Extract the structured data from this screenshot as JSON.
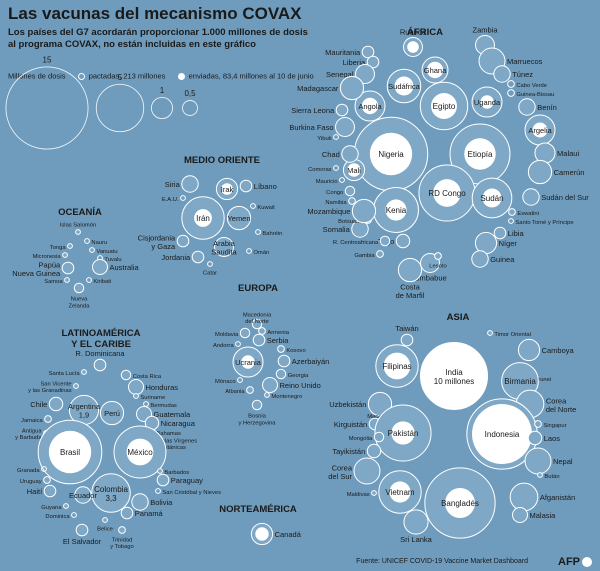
{
  "title": "Las vacunas del mecanismo COVAX",
  "subtitle": "Los países del G7 acordarán proporcionar 1.000 millones de dosis al programa COVAX, no están incluidas en este gráfico",
  "legend": {
    "label": "Millones de dosis",
    "pactadas": "pactadas, 213 millones",
    "enviadas": "enviadas, 83,4 millones al 10 de junio",
    "scale": [
      "15",
      "5",
      "1",
      "0,5"
    ]
  },
  "source": "Fuente: UNICEF COVID-19 Vaccine Market Dashboard",
  "credit": "AFP",
  "chart_data": {
    "type": "bubble",
    "unit": "millones de dosis",
    "regions": [
      {
        "name": "ÁFRICA",
        "countries": [
          {
            "name": "Nigeria",
            "pactadas": 12,
            "enviadas": 4
          },
          {
            "name": "Etiopía",
            "pactadas": 8,
            "enviadas": 2.2
          },
          {
            "name": "RD Congo",
            "pactadas": 7,
            "enviadas": 1.7
          },
          {
            "name": "Kenia",
            "pactadas": 4.5,
            "enviadas": 1
          },
          {
            "name": "Egipto",
            "pactadas": 5,
            "enviadas": 1.5
          },
          {
            "name": "Sudán",
            "pactadas": 3.5,
            "enviadas": 0.8
          },
          {
            "name": "Angola",
            "pactadas": 2,
            "enviadas": 0.6
          },
          {
            "name": "Sudáfrica",
            "pactadas": 2.5,
            "enviadas": 0.8
          },
          {
            "name": "Ghana",
            "pactadas": 1.5,
            "enviadas": 0.6
          },
          {
            "name": "Uganda",
            "pactadas": 2,
            "enviadas": 0.4
          },
          {
            "name": "Argelia",
            "pactadas": 2,
            "enviadas": 0.5
          },
          {
            "name": "Mali",
            "pactadas": 1,
            "enviadas": 0.4
          },
          {
            "name": "Ruanda",
            "pactadas": 0.8,
            "enviadas": 0.3
          },
          {
            "name": "Zambia",
            "pactadas": 0.8
          },
          {
            "name": "Mauritania",
            "pactadas": 0.3
          },
          {
            "name": "Liberia",
            "pactadas": 0.3
          },
          {
            "name": "Senegal",
            "pactadas": 0.8
          },
          {
            "name": "Madagascar",
            "pactadas": 1.2
          },
          {
            "name": "Marruecos",
            "pactadas": 1.5
          },
          {
            "name": "Túnez",
            "pactadas": 0.6
          },
          {
            "name": "Cabo Verde",
            "pactadas": 0.1
          },
          {
            "name": "Guinea-Bissau",
            "pactadas": 0.1
          },
          {
            "name": "Benín",
            "pactadas": 0.6
          },
          {
            "name": "Malaui",
            "pactadas": 0.9
          },
          {
            "name": "Camerún",
            "pactadas": 1.2
          },
          {
            "name": "Sudán del Sur",
            "pactadas": 0.6
          },
          {
            "name": "Eswatini",
            "pactadas": 0.1
          },
          {
            "name": "Santo Tomé y Príncipe",
            "pactadas": 0.05
          },
          {
            "name": "Libia",
            "pactadas": 0.3
          },
          {
            "name": "Níger",
            "pactadas": 1
          },
          {
            "name": "Guinea",
            "pactadas": 0.6
          },
          {
            "name": "Zimbabue",
            "pactadas": 0.8
          },
          {
            "name": "Lesoto",
            "pactadas": 0.1
          },
          {
            "name": "Costa de Marfil",
            "pactadas": 1.2
          },
          {
            "name": "Togo",
            "pactadas": 0.4
          },
          {
            "name": "Gambia",
            "pactadas": 0.1
          },
          {
            "name": "R. Centroafricana",
            "pactadas": 0.2
          },
          {
            "name": "Somalia",
            "pactadas": 0.6
          },
          {
            "name": "Botsuana",
            "pactadas": 0.1
          },
          {
            "name": "Mozambique",
            "pactadas": 1.2
          },
          {
            "name": "Namibia",
            "pactadas": 0.1
          },
          {
            "name": "Congo",
            "pactadas": 0.2
          },
          {
            "name": "Mauricio",
            "pactadas": 0.05
          },
          {
            "name": "Comoras",
            "pactadas": 0.05
          },
          {
            "name": "Chad",
            "pactadas": 0.6
          },
          {
            "name": "Yibuti",
            "pactadas": 0.05
          },
          {
            "name": "Burkina Faso",
            "pactadas": 0.8
          },
          {
            "name": "Sierra Leona",
            "pactadas": 0.3
          }
        ]
      },
      {
        "name": "MEDIO ORIENTE",
        "countries": [
          {
            "name": "Irán",
            "pactadas": 4,
            "enviadas": 0.7
          },
          {
            "name": "Siria",
            "pactadas": 0.6
          },
          {
            "name": "Irak",
            "pactadas": 1,
            "enviadas": 0.3
          },
          {
            "name": "Líbano",
            "pactadas": 0.3
          },
          {
            "name": "E.A.U.",
            "pactadas": 0.05
          },
          {
            "name": "Kuwait",
            "pactadas": 0.05
          },
          {
            "name": "Yemen",
            "pactadas": 1.2
          },
          {
            "name": "Bahréin",
            "pactadas": 0.05
          },
          {
            "name": "Cisjordania y Gaza",
            "pactadas": 0.3
          },
          {
            "name": "Arabia Saudita",
            "pactadas": 0.8
          },
          {
            "name": "Jordania",
            "pactadas": 0.3
          },
          {
            "name": "Catar",
            "pactadas": 0.05
          },
          {
            "name": "Omán",
            "pactadas": 0.05
          }
        ]
      },
      {
        "name": "OCEANÍA",
        "countries": [
          {
            "name": "Islas Salomón",
            "pactadas": 0.05
          },
          {
            "name": "Tonga",
            "pactadas": 0.02
          },
          {
            "name": "Nauru",
            "pactadas": 0.01
          },
          {
            "name": "Micronesia",
            "pactadas": 0.02
          },
          {
            "name": "Vanuatu",
            "pactadas": 0.03
          },
          {
            "name": "Tuvalu",
            "pactadas": 0.01
          },
          {
            "name": "Papúa Nueva Guinea",
            "pactadas": 0.3
          },
          {
            "name": "Australia",
            "pactadas": 0.5
          },
          {
            "name": "Samoa",
            "pactadas": 0.02
          },
          {
            "name": "Kiribati",
            "pactadas": 0.01
          },
          {
            "name": "Nueva Zelanda",
            "pactadas": 0.2
          }
        ]
      },
      {
        "name": "EUROPA",
        "countries": [
          {
            "name": "Macedonia del Norte",
            "pactadas": 0.2
          },
          {
            "name": "Moldavia",
            "pactadas": 0.2
          },
          {
            "name": "Armenia",
            "pactadas": 0.1
          },
          {
            "name": "Andorra",
            "pactadas": 0.01
          },
          {
            "name": "Serbia",
            "pactadas": 0.3
          },
          {
            "name": "Kosovo",
            "pactadas": 0.1
          },
          {
            "name": "Ucrania",
            "pactadas": 2,
            "enviadas": 0.4
          },
          {
            "name": "Azerbaiyán",
            "pactadas": 0.3
          },
          {
            "name": "Georgia",
            "pactadas": 0.2
          },
          {
            "name": "Mónaco",
            "pactadas": 0.01
          },
          {
            "name": "Reino Unido",
            "pactadas": 0.5
          },
          {
            "name": "Albania",
            "pactadas": 0.1
          },
          {
            "name": "Montenegro",
            "pactadas": 0.05
          },
          {
            "name": "Bosnia y Herzegovina",
            "pactadas": 0.2
          }
        ]
      },
      {
        "name": "LATINOAMÉRICA Y EL CARIBE",
        "countries": [
          {
            "name": "R. Dominicana",
            "pactadas": 0.3
          },
          {
            "name": "Santa Lucía",
            "pactadas": 0.02
          },
          {
            "name": "Costa Rica",
            "pactadas": 0.2
          },
          {
            "name": "San Vicente y las Granadinas",
            "pactadas": 0.02
          },
          {
            "name": "Honduras",
            "pactadas": 0.5
          },
          {
            "name": "Suriname",
            "pactadas": 0.05
          },
          {
            "name": "Chile",
            "pactadas": 0.4
          },
          {
            "name": "Argentina",
            "value_label": "1,9",
            "pactadas": 1.9
          },
          {
            "name": "Bermudas",
            "pactadas": 0.01
          },
          {
            "name": "Guatemala",
            "pactadas": 0.5
          },
          {
            "name": "Perú",
            "pactadas": 1.2
          },
          {
            "name": "Jamaica",
            "pactadas": 0.1
          },
          {
            "name": "Nicaragua",
            "pactadas": 0.4
          },
          {
            "name": "Bahamas",
            "pactadas": 0.05
          },
          {
            "name": "Antigua y Barbuda",
            "pactadas": 0.01
          },
          {
            "name": "Islas Vírgenes Británicas",
            "pactadas": 0.01
          },
          {
            "name": "Brasil",
            "pactadas": 9,
            "enviadas": 4
          },
          {
            "name": "México",
            "pactadas": 6,
            "enviadas": 1.6
          },
          {
            "name": "Granada",
            "pactadas": 0.01
          },
          {
            "name": "Barbados",
            "pactadas": 0.02
          },
          {
            "name": "Uruguay",
            "pactadas": 0.1
          },
          {
            "name": "Paraguay",
            "pactadas": 0.3
          },
          {
            "name": "Haití",
            "pactadas": 0.3
          },
          {
            "name": "Colombia",
            "value_label": "3,3",
            "pactadas": 3.3
          },
          {
            "name": "San Cristóbal y Nieves",
            "pactadas": 0.01
          },
          {
            "name": "Ecuador",
            "pactadas": 0.6
          },
          {
            "name": "Bolivia",
            "pactadas": 0.6
          },
          {
            "name": "Guyana",
            "pactadas": 0.05
          },
          {
            "name": "Dominica",
            "pactadas": 0.01
          },
          {
            "name": "Panamá",
            "pactadas": 0.3
          },
          {
            "name": "Belice",
            "pactadas": 0.05
          },
          {
            "name": "Trinidad y Tobago",
            "pactadas": 0.1
          },
          {
            "name": "El Salvador",
            "pactadas": 0.3
          }
        ]
      },
      {
        "name": "ASIA",
        "countries": [
          {
            "name": "India",
            "value_label": "10 millones",
            "pactadas": 10,
            "enviadas": 10
          },
          {
            "name": "Taiwán",
            "pactadas": 0.3
          },
          {
            "name": "Timor Oriental",
            "pactadas": 0.05
          },
          {
            "name": "Camboya",
            "pactadas": 1
          },
          {
            "name": "Filipinas",
            "pactadas": 4,
            "enviadas": 1.6
          },
          {
            "name": "Brunei",
            "pactadas": 0.02
          },
          {
            "name": "Birmania",
            "pactadas": 3
          },
          {
            "name": "Corea del Norte",
            "pactadas": 1.7
          },
          {
            "name": "Uzbekistán",
            "pactadas": 1.2
          },
          {
            "name": "Macao",
            "pactadas": 0.01
          },
          {
            "name": "Kirguistán",
            "pactadas": 0.3
          },
          {
            "name": "Pakistán",
            "pactadas": 7,
            "enviadas": 1.2
          },
          {
            "name": "Indonesia",
            "pactadas": 11,
            "enviadas": 8
          },
          {
            "name": "Singapur",
            "pactadas": 0.1
          },
          {
            "name": "Mongolia",
            "pactadas": 0.2
          },
          {
            "name": "Laos",
            "pactadas": 0.4
          },
          {
            "name": "Tayikistán",
            "pactadas": 0.4
          },
          {
            "name": "Nepal",
            "pactadas": 1.5
          },
          {
            "name": "Corea del Sur",
            "pactadas": 1.5
          },
          {
            "name": "Bután",
            "pactadas": 0.05
          },
          {
            "name": "Maldivas",
            "pactadas": 0.02
          },
          {
            "name": "Vietnam",
            "pactadas": 4,
            "enviadas": 1
          },
          {
            "name": "Bangladés",
            "pactadas": 11,
            "enviadas": 2
          },
          {
            "name": "Afganistán",
            "pactadas": 1.7
          },
          {
            "name": "Malasia",
            "pactadas": 0.5
          },
          {
            "name": "Sri Lanka",
            "pactadas": 1.3
          }
        ]
      },
      {
        "name": "NORTEAMÉRICA",
        "countries": [
          {
            "name": "Canadá",
            "pactadas": 1,
            "enviadas": 0.4
          }
        ]
      }
    ]
  }
}
